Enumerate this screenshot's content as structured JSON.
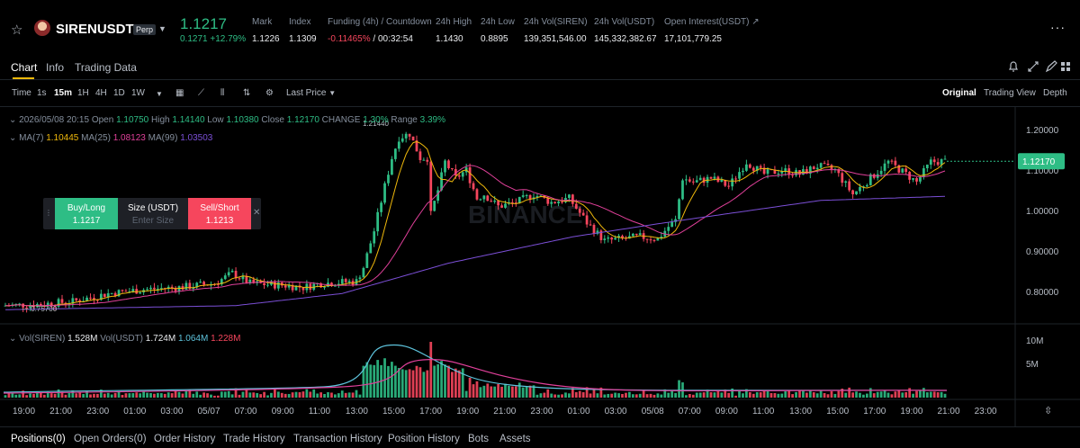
{
  "ticker": {
    "symbol": "SIRENUSDT",
    "contract_type": "Perp",
    "last_price": "1.1217",
    "change": "0.1271 +12.79%",
    "stats": [
      {
        "label": "Mark",
        "value": "1.1226"
      },
      {
        "label": "Index",
        "value": "1.1309"
      },
      {
        "label": "Funding (4h) / Countdown",
        "value": "-0.11465%",
        "value2": " / 00:32:54"
      },
      {
        "label": "24h High",
        "value": "1.1430"
      },
      {
        "label": "24h Low",
        "value": "0.8895"
      },
      {
        "label": "24h Vol(SIREN)",
        "value": "139,351,546.00"
      },
      {
        "label": "24h Vol(USDT)",
        "value": "145,332,382.67"
      },
      {
        "label": "Open Interest(USDT)",
        "value": "17,101,779.25"
      }
    ],
    "more_glyph": "···"
  },
  "tabs": [
    "Chart",
    "Info",
    "Trading Data"
  ],
  "toolbar": {
    "time_label": "Time",
    "intervals": [
      "1s",
      "15m",
      "1H",
      "4H",
      "1D",
      "1W"
    ],
    "active_interval": "15m",
    "price_type": "Last Price",
    "views": [
      "Original",
      "Trading View",
      "Depth"
    ],
    "active_view": "Original"
  },
  "legend": {
    "date": "2026/05/08 20:15",
    "open_label": "Open",
    "open": "1.10750",
    "high_label": "High",
    "high": "1.14140",
    "low_label": "Low",
    "low": "1.10380",
    "close_label": "Close",
    "close": "1.12170",
    "change_label": "CHANGE",
    "change": "1.30%",
    "range_label": "Range",
    "range": "3.39%",
    "ma7_label": "MA(7)",
    "ma7": "1.10445",
    "ma25_label": "MA(25)",
    "ma25": "1.08123",
    "ma99_label": "MA(99)",
    "ma99": "1.03503",
    "vol_label": "Vol(SIREN)",
    "vol_siren": "1.528M",
    "volusdt_label": "Vol(USDT)",
    "vol_usdt": "1.724M",
    "vol_ma1": "1.064M",
    "vol_ma2": "1.228M"
  },
  "order": {
    "buy_label": "Buy/Long",
    "buy_price": "1.1217",
    "size_label": "Size (USDT)",
    "size_placeholder": "Enter Size",
    "sell_label": "Sell/Short",
    "sell_price": "1.1213"
  },
  "chart_data": {
    "type": "candlestick",
    "price_axis": [
      "1.20000",
      "1.10000",
      "1.00000",
      "0.90000",
      "0.80000"
    ],
    "current_price_tag": "1.12170",
    "high_marker": "1.21440",
    "low_marker": "0.75700",
    "volume_axis": [
      "10M",
      "5M"
    ],
    "time_axis": [
      "19:00",
      "21:00",
      "23:00",
      "01:00",
      "03:00",
      "05/07",
      "07:00",
      "09:00",
      "11:00",
      "13:00",
      "15:00",
      "17:00",
      "19:00",
      "21:00",
      "23:00",
      "01:00",
      "03:00",
      "05/08",
      "07:00",
      "09:00",
      "11:00",
      "13:00",
      "15:00",
      "17:00",
      "19:00",
      "21:00",
      "23:00"
    ],
    "close_profile": [
      [
        0,
        0.765
      ],
      [
        10,
        0.768
      ],
      [
        20,
        0.775
      ],
      [
        30,
        0.795
      ],
      [
        40,
        0.805
      ],
      [
        50,
        0.81
      ],
      [
        60,
        0.82
      ],
      [
        65,
        0.845
      ],
      [
        70,
        0.82
      ],
      [
        80,
        0.815
      ],
      [
        85,
        0.81
      ],
      [
        90,
        0.82
      ],
      [
        100,
        0.825
      ],
      [
        102,
        0.86
      ],
      [
        105,
        0.95
      ],
      [
        108,
        1.06
      ],
      [
        110,
        1.13
      ],
      [
        112,
        1.18
      ],
      [
        115,
        1.19
      ],
      [
        118,
        1.13
      ],
      [
        120,
        1.13
      ],
      [
        121,
        0.99
      ],
      [
        123,
        1.05
      ],
      [
        125,
        1.12
      ],
      [
        128,
        1.08
      ],
      [
        131,
        1.1
      ],
      [
        134,
        1.03
      ],
      [
        136,
        1.04
      ],
      [
        140,
        1.01
      ],
      [
        145,
        1.02
      ],
      [
        150,
        1.04
      ],
      [
        155,
        1.02
      ],
      [
        160,
        1.03
      ],
      [
        165,
        0.97
      ],
      [
        170,
        0.925
      ],
      [
        175,
        0.93
      ],
      [
        180,
        0.935
      ],
      [
        185,
        0.93
      ],
      [
        188,
        0.96
      ],
      [
        190,
        0.975
      ],
      [
        192,
        1.08
      ],
      [
        195,
        1.07
      ],
      [
        200,
        1.08
      ],
      [
        205,
        1.06
      ],
      [
        210,
        1.12
      ],
      [
        215,
        1.09
      ],
      [
        220,
        1.1
      ],
      [
        225,
        1.09
      ],
      [
        230,
        1.11
      ],
      [
        235,
        1.1
      ],
      [
        240,
        1.04
      ],
      [
        245,
        1.08
      ],
      [
        250,
        1.12
      ],
      [
        255,
        1.09
      ],
      [
        258,
        1.07
      ],
      [
        262,
        1.12
      ],
      [
        265,
        1.1217
      ]
    ],
    "ma99_profile": [
      [
        0,
        0.755
      ],
      [
        65,
        0.765
      ],
      [
        95,
        0.795
      ],
      [
        125,
        0.87
      ],
      [
        160,
        0.935
      ],
      [
        190,
        0.975
      ],
      [
        230,
        1.025
      ],
      [
        265,
        1.035
      ]
    ]
  },
  "bottom_tabs": [
    "Positions(0)",
    "Open Orders(0)",
    "Order History",
    "Trade History",
    "Transaction History",
    "Position History",
    "Bots",
    "Assets"
  ],
  "colors": {
    "up": "#2ebd85",
    "down": "#f6465d",
    "ma7": "#f0b90b",
    "ma25": "#e0409a",
    "ma99": "#7b4fd6",
    "accent": "#f0b90b"
  }
}
